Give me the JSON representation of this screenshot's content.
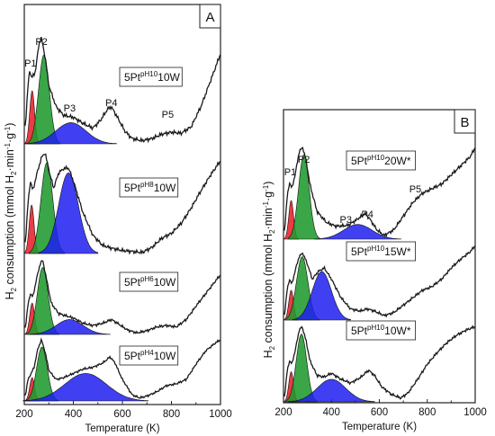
{
  "figure": {
    "ylabel_text": "consumption (mmol H",
    "ylabel_tail": "·min",
    "ylabel_unit": "·g"
  },
  "colors": {
    "p1": "#e8202a",
    "p2": "#1f9a2e",
    "p3": "#1f1ff0",
    "trace": "#1a1a1a"
  },
  "chart_data": [
    {
      "type": "line",
      "panel": "A",
      "xlabel": "Temperature (K)",
      "ylabel": "H2 consumption (mmol H2·min-1·g-1)",
      "xlim": [
        200,
        1000
      ],
      "xticks": [
        200,
        400,
        600,
        800,
        1000
      ],
      "tick_labels": [
        "200",
        "400",
        "600",
        "800",
        "1000"
      ],
      "grid": false,
      "peak_labels": [
        {
          "text": "P1",
          "x": 225
        },
        {
          "text": "P2",
          "x": 270
        },
        {
          "text": "P3",
          "x": 385
        },
        {
          "text": "P4",
          "x": 555
        },
        {
          "text": "P5",
          "x": 785
        }
      ],
      "series": [
        {
          "name": "5Pt",
          "sup": "pH10",
          "suffix": "10W",
          "trace": [
            [
              205,
              0.18
            ],
            [
              215,
              0.55
            ],
            [
              222,
              0.7
            ],
            [
              230,
              0.62
            ],
            [
              245,
              0.68
            ],
            [
              260,
              0.95
            ],
            [
              270,
              1.0
            ],
            [
              285,
              0.82
            ],
            [
              300,
              0.55
            ],
            [
              330,
              0.35
            ],
            [
              360,
              0.27
            ],
            [
              400,
              0.25
            ],
            [
              450,
              0.18
            ],
            [
              480,
              0.15
            ],
            [
              510,
              0.22
            ],
            [
              540,
              0.33
            ],
            [
              555,
              0.35
            ],
            [
              580,
              0.25
            ],
            [
              610,
              0.12
            ],
            [
              640,
              0.05
            ],
            [
              680,
              0.03
            ],
            [
              720,
              0.05
            ],
            [
              760,
              0.09
            ],
            [
              800,
              0.11
            ],
            [
              840,
              0.1
            ],
            [
              880,
              0.16
            ],
            [
              920,
              0.35
            ],
            [
              960,
              0.6
            ],
            [
              1000,
              0.85
            ]
          ],
          "components": [
            {
              "peak": "P1",
              "center": 232,
              "height": 0.5,
              "width": 10
            },
            {
              "peak": "P2",
              "center": 280,
              "height": 0.84,
              "width": 22
            },
            {
              "peak": "P3",
              "center": 390,
              "height": 0.2,
              "width": 62
            }
          ]
        },
        {
          "name": "5Pt",
          "sup": "pH8",
          "suffix": "10W",
          "trace": [
            [
              205,
              0.12
            ],
            [
              215,
              0.5
            ],
            [
              225,
              0.72
            ],
            [
              235,
              0.62
            ],
            [
              250,
              0.78
            ],
            [
              270,
              0.95
            ],
            [
              285,
              1.0
            ],
            [
              300,
              0.82
            ],
            [
              320,
              0.65
            ],
            [
              340,
              0.8
            ],
            [
              360,
              0.84
            ],
            [
              380,
              0.85
            ],
            [
              400,
              0.72
            ],
            [
              440,
              0.4
            ],
            [
              480,
              0.18
            ],
            [
              520,
              0.08
            ],
            [
              560,
              0.05
            ],
            [
              600,
              0.03
            ],
            [
              640,
              0.02
            ],
            [
              680,
              0.01
            ],
            [
              720,
              0.06
            ],
            [
              760,
              0.15
            ],
            [
              800,
              0.2
            ],
            [
              840,
              0.3
            ],
            [
              880,
              0.45
            ],
            [
              920,
              0.62
            ],
            [
              960,
              0.78
            ],
            [
              1000,
              0.92
            ]
          ],
          "components": [
            {
              "peak": "P1",
              "center": 230,
              "height": 0.48,
              "width": 10
            },
            {
              "peak": "P2",
              "center": 292,
              "height": 0.9,
              "width": 24
            },
            {
              "peak": "P3",
              "center": 380,
              "height": 0.8,
              "width": 40
            }
          ]
        },
        {
          "name": "5Pt",
          "sup": "pH6",
          "suffix": "10W",
          "trace": [
            [
              205,
              0.1
            ],
            [
              215,
              0.4
            ],
            [
              225,
              0.55
            ],
            [
              235,
              0.5
            ],
            [
              250,
              0.75
            ],
            [
              265,
              0.95
            ],
            [
              275,
              1.0
            ],
            [
              290,
              0.75
            ],
            [
              310,
              0.42
            ],
            [
              340,
              0.28
            ],
            [
              370,
              0.25
            ],
            [
              400,
              0.22
            ],
            [
              440,
              0.15
            ],
            [
              480,
              0.12
            ],
            [
              520,
              0.15
            ],
            [
              555,
              0.2
            ],
            [
              580,
              0.15
            ],
            [
              620,
              0.06
            ],
            [
              660,
              0.02
            ],
            [
              700,
              0.05
            ],
            [
              740,
              0.1
            ],
            [
              780,
              0.12
            ],
            [
              820,
              0.1
            ],
            [
              860,
              0.2
            ],
            [
              900,
              0.38
            ],
            [
              940,
              0.55
            ],
            [
              980,
              0.72
            ],
            [
              1000,
              0.8
            ]
          ],
          "components": [
            {
              "peak": "P1",
              "center": 232,
              "height": 0.42,
              "width": 10
            },
            {
              "peak": "P2",
              "center": 275,
              "height": 0.9,
              "width": 22
            },
            {
              "peak": "P3",
              "center": 385,
              "height": 0.2,
              "width": 55
            }
          ]
        },
        {
          "name": "5Pt",
          "sup": "pH4",
          "suffix": "10W",
          "trace": [
            [
              205,
              0.1
            ],
            [
              215,
              0.35
            ],
            [
              228,
              0.45
            ],
            [
              240,
              0.55
            ],
            [
              255,
              0.85
            ],
            [
              270,
              1.0
            ],
            [
              285,
              0.8
            ],
            [
              300,
              0.5
            ],
            [
              330,
              0.35
            ],
            [
              360,
              0.38
            ],
            [
              400,
              0.45
            ],
            [
              440,
              0.52
            ],
            [
              480,
              0.55
            ],
            [
              520,
              0.62
            ],
            [
              550,
              0.72
            ],
            [
              570,
              0.62
            ],
            [
              600,
              0.35
            ],
            [
              640,
              0.1
            ],
            [
              670,
              0.05
            ],
            [
              700,
              0.08
            ],
            [
              740,
              0.15
            ],
            [
              780,
              0.25
            ],
            [
              820,
              0.28
            ],
            [
              860,
              0.35
            ],
            [
              900,
              0.6
            ],
            [
              940,
              0.82
            ],
            [
              980,
              0.95
            ],
            [
              1000,
              1.0
            ]
          ],
          "components": [
            {
              "peak": "P1",
              "center": 232,
              "height": 0.38,
              "width": 10
            },
            {
              "peak": "P2",
              "center": 272,
              "height": 0.88,
              "width": 22
            },
            {
              "peak": "P3",
              "center": 450,
              "height": 0.45,
              "width": 85
            }
          ]
        }
      ]
    },
    {
      "type": "line",
      "panel": "B",
      "xlabel": "Temperature (K)",
      "ylabel": "H2 consumption (mmol H2·min-1·g-1)",
      "xlim": [
        200,
        1000
      ],
      "xticks": [
        200,
        400,
        600,
        800,
        1000
      ],
      "tick_labels": [
        "200",
        "400",
        "600",
        "800",
        "1000"
      ],
      "grid": false,
      "peak_labels": [
        {
          "text": "P1",
          "x": 228
        },
        {
          "text": "P2",
          "x": 285
        },
        {
          "text": "P3",
          "x": 460
        },
        {
          "text": "P4",
          "x": 550
        },
        {
          "text": "P5",
          "x": 750
        }
      ],
      "series": [
        {
          "name": "5Pt",
          "sup": "pH10",
          "suffix": "20W*",
          "trace": [
            [
              205,
              0.1
            ],
            [
              215,
              0.45
            ],
            [
              225,
              0.62
            ],
            [
              235,
              0.55
            ],
            [
              250,
              0.72
            ],
            [
              265,
              0.95
            ],
            [
              280,
              1.0
            ],
            [
              295,
              0.85
            ],
            [
              310,
              0.6
            ],
            [
              340,
              0.3
            ],
            [
              380,
              0.18
            ],
            [
              420,
              0.14
            ],
            [
              470,
              0.15
            ],
            [
              510,
              0.22
            ],
            [
              540,
              0.28
            ],
            [
              560,
              0.22
            ],
            [
              590,
              0.1
            ],
            [
              620,
              0.04
            ],
            [
              660,
              0.1
            ],
            [
              700,
              0.25
            ],
            [
              740,
              0.4
            ],
            [
              780,
              0.5
            ],
            [
              820,
              0.55
            ],
            [
              860,
              0.6
            ],
            [
              900,
              0.7
            ],
            [
              940,
              0.8
            ],
            [
              980,
              0.9
            ],
            [
              1000,
              1.0
            ]
          ],
          "components": [
            {
              "peak": "P1",
              "center": 232,
              "height": 0.42,
              "width": 10
            },
            {
              "peak": "P2",
              "center": 285,
              "height": 0.92,
              "width": 22
            },
            {
              "peak": "P3",
              "center": 510,
              "height": 0.16,
              "width": 60
            }
          ]
        },
        {
          "name": "5Pt",
          "sup": "pH10",
          "suffix": "15W*",
          "trace": [
            [
              205,
              0.08
            ],
            [
              215,
              0.4
            ],
            [
              225,
              0.55
            ],
            [
              235,
              0.48
            ],
            [
              250,
              0.68
            ],
            [
              265,
              0.85
            ],
            [
              280,
              0.9
            ],
            [
              300,
              0.75
            ],
            [
              320,
              0.55
            ],
            [
              345,
              0.65
            ],
            [
              370,
              0.7
            ],
            [
              400,
              0.55
            ],
            [
              440,
              0.3
            ],
            [
              480,
              0.15
            ],
            [
              520,
              0.12
            ],
            [
              550,
              0.15
            ],
            [
              580,
              0.12
            ],
            [
              620,
              0.06
            ],
            [
              660,
              0.1
            ],
            [
              700,
              0.2
            ],
            [
              740,
              0.3
            ],
            [
              780,
              0.4
            ],
            [
              820,
              0.45
            ],
            [
              860,
              0.55
            ],
            [
              900,
              0.7
            ],
            [
              940,
              0.82
            ],
            [
              980,
              0.92
            ],
            [
              1000,
              1.0
            ]
          ],
          "components": [
            {
              "peak": "P1",
              "center": 232,
              "height": 0.4,
              "width": 10
            },
            {
              "peak": "P2",
              "center": 278,
              "height": 0.85,
              "width": 24
            },
            {
              "peak": "P3",
              "center": 360,
              "height": 0.65,
              "width": 40
            }
          ]
        },
        {
          "name": "5Pt",
          "sup": "pH10",
          "suffix": "10W*",
          "trace": [
            [
              205,
              0.08
            ],
            [
              215,
              0.4
            ],
            [
              225,
              0.55
            ],
            [
              235,
              0.5
            ],
            [
              250,
              0.7
            ],
            [
              265,
              0.95
            ],
            [
              278,
              1.0
            ],
            [
              295,
              0.8
            ],
            [
              310,
              0.55
            ],
            [
              340,
              0.35
            ],
            [
              370,
              0.33
            ],
            [
              400,
              0.38
            ],
            [
              440,
              0.3
            ],
            [
              480,
              0.25
            ],
            [
              520,
              0.32
            ],
            [
              555,
              0.42
            ],
            [
              580,
              0.35
            ],
            [
              610,
              0.2
            ],
            [
              650,
              0.1
            ],
            [
              690,
              0.05
            ],
            [
              720,
              0.12
            ],
            [
              760,
              0.3
            ],
            [
              800,
              0.5
            ],
            [
              840,
              0.65
            ],
            [
              880,
              0.78
            ],
            [
              920,
              0.88
            ],
            [
              960,
              0.95
            ],
            [
              1000,
              1.0
            ]
          ],
          "components": [
            {
              "peak": "P1",
              "center": 232,
              "height": 0.4,
              "width": 10
            },
            {
              "peak": "P2",
              "center": 275,
              "height": 0.9,
              "width": 22
            },
            {
              "peak": "P3",
              "center": 400,
              "height": 0.3,
              "width": 60
            }
          ]
        }
      ]
    }
  ]
}
